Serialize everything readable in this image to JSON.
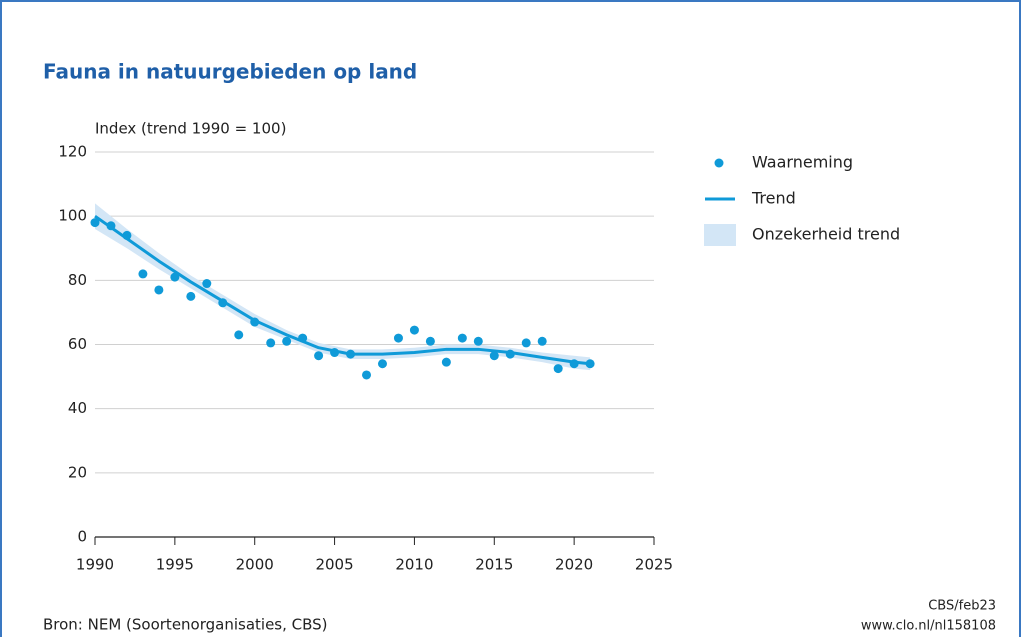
{
  "chart_data": {
    "type": "line",
    "title": "Fauna in natuurgebieden op land",
    "y_label": "Index (trend 1990 = 100)",
    "source": "Bron: NEM (Soortenorganisaties, CBS)",
    "credit": "CBS/feb23",
    "url": "www.clo.nl/nl158108",
    "xlim": [
      1990,
      2025
    ],
    "xticks": [
      1990,
      1995,
      2000,
      2005,
      2010,
      2015,
      2020,
      2025
    ],
    "ylim": [
      0,
      120
    ],
    "yticks": [
      0,
      20,
      40,
      60,
      80,
      100,
      120
    ],
    "grid": true,
    "legend": "right",
    "series": [
      {
        "name": "Waarneming",
        "style": "dots",
        "color": "#0f9ad8",
        "x": [
          1990,
          1991,
          1992,
          1993,
          1994,
          1995,
          1996,
          1997,
          1998,
          1999,
          2000,
          2001,
          2002,
          2003,
          2004,
          2005,
          2006,
          2007,
          2008,
          2009,
          2010,
          2011,
          2012,
          2013,
          2014,
          2015,
          2016,
          2017,
          2018,
          2019,
          2020,
          2021
        ],
        "values": [
          98,
          97,
          94,
          82,
          77,
          81,
          75,
          79,
          73,
          63,
          67,
          60.5,
          61,
          62,
          56.5,
          57.5,
          57,
          50.5,
          54,
          62,
          64.5,
          61,
          54.5,
          62,
          61,
          56.5,
          57,
          60.5,
          61,
          52.5,
          54,
          54
        ]
      },
      {
        "name": "Trend",
        "style": "line",
        "color": "#0f9ad8",
        "x": [
          1990,
          1992,
          1994,
          1996,
          1998,
          2000,
          2002,
          2004,
          2006,
          2008,
          2010,
          2012,
          2014,
          2016,
          2018,
          2020,
          2021
        ],
        "values": [
          100,
          93,
          86,
          79.5,
          73.5,
          67.5,
          63,
          59,
          57,
          57,
          57.5,
          58.5,
          58.5,
          57.5,
          56,
          54.5,
          54
        ]
      },
      {
        "name": "Onzekerheid trend",
        "style": "band",
        "color": "#d3e6f6",
        "x": [
          1990,
          1992,
          1994,
          1996,
          1998,
          2000,
          2002,
          2004,
          2006,
          2008,
          2010,
          2012,
          2014,
          2016,
          2018,
          2020,
          2021
        ],
        "upper": [
          104,
          96,
          88.5,
          81.5,
          75.5,
          69.5,
          64.5,
          60.5,
          58.5,
          58.5,
          59,
          60,
          60,
          59,
          57.5,
          56.5,
          56
        ],
        "lower": [
          96,
          90,
          83.5,
          77.5,
          71.5,
          65.5,
          61.5,
          57.5,
          55.5,
          55.5,
          56,
          57,
          57,
          56,
          54.5,
          52.5,
          52
        ]
      }
    ]
  }
}
